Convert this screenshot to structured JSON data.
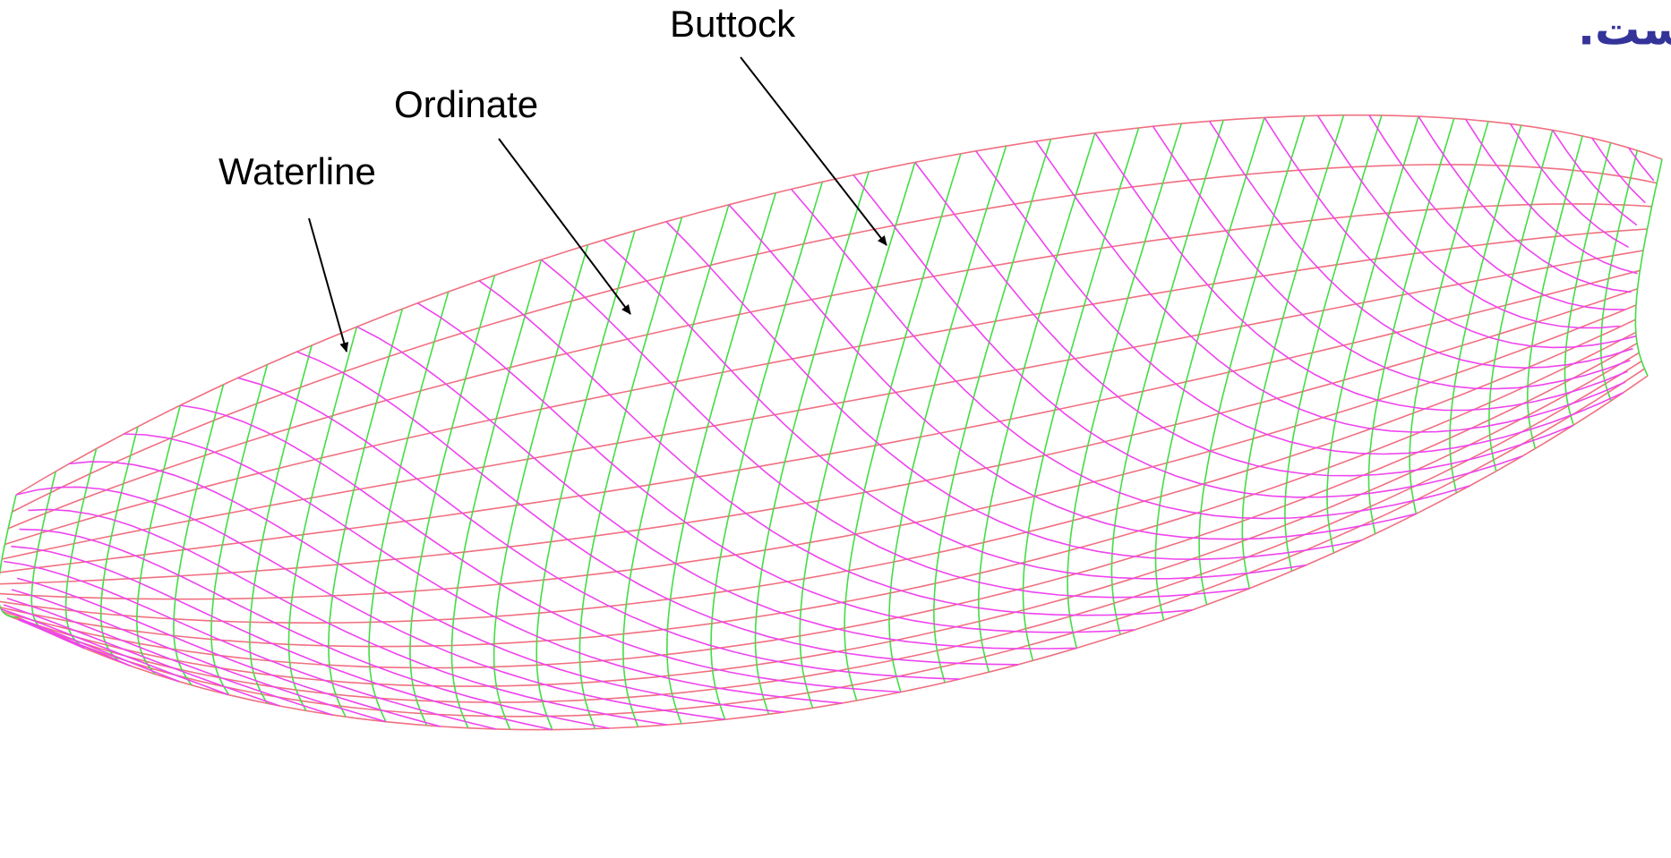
{
  "title": "بدنه کشتی است.",
  "labels": {
    "buttock": "Buttock",
    "ordinate": "Ordinate",
    "waterline": "Waterline"
  }
}
